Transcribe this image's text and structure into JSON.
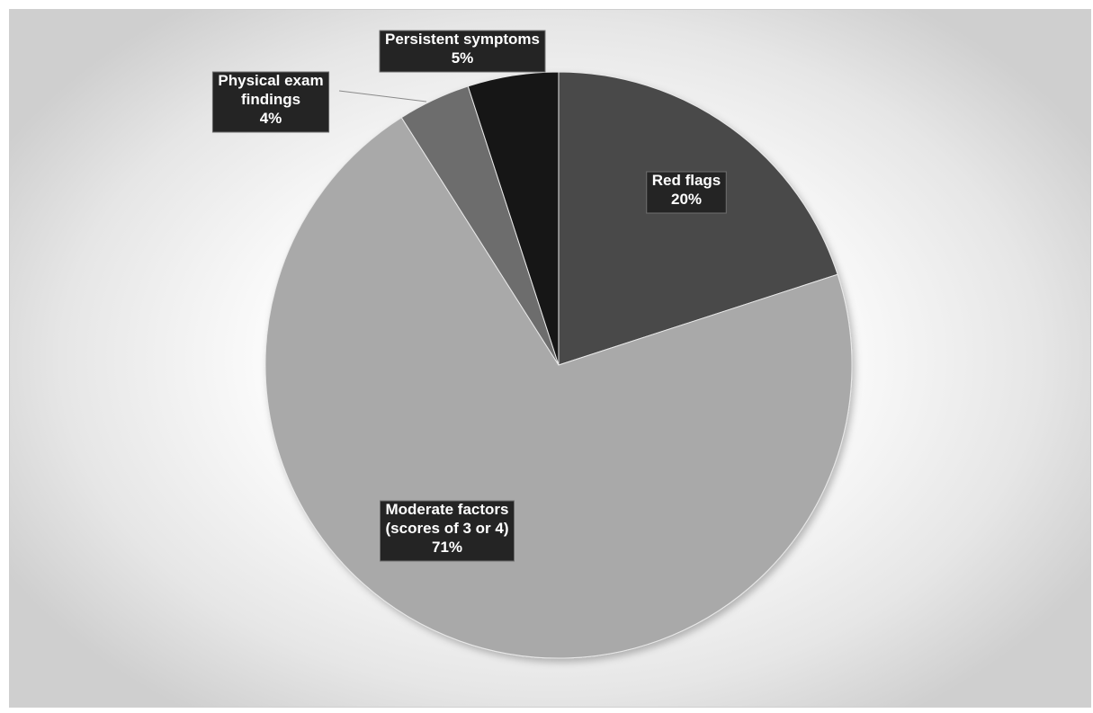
{
  "chart_data": {
    "type": "pie",
    "start": "12 o'clock",
    "direction": "clockwise",
    "slices": [
      {
        "name": "Red flags",
        "label_lines": [
          "Red flags"
        ],
        "value": 20,
        "value_label": "20%",
        "color": "#4a4a4a"
      },
      {
        "name": "Moderate factors (scores of 3 or 4)",
        "label_lines": [
          "Moderate factors",
          "(scores of 3 or 4)"
        ],
        "value": 71,
        "value_label": "71%",
        "color": "#a9a9a9"
      },
      {
        "name": "Physical exam findings",
        "label_lines": [
          "Physical exam",
          "findings"
        ],
        "value": 4,
        "value_label": "4%",
        "color": "#6d6d6d"
      },
      {
        "name": "Persistent symptoms",
        "label_lines": [
          "Persistent symptoms"
        ],
        "value": 5,
        "value_label": "5%",
        "color": "#141414"
      }
    ],
    "legend": "none",
    "label_style": "dark callout boxes"
  }
}
